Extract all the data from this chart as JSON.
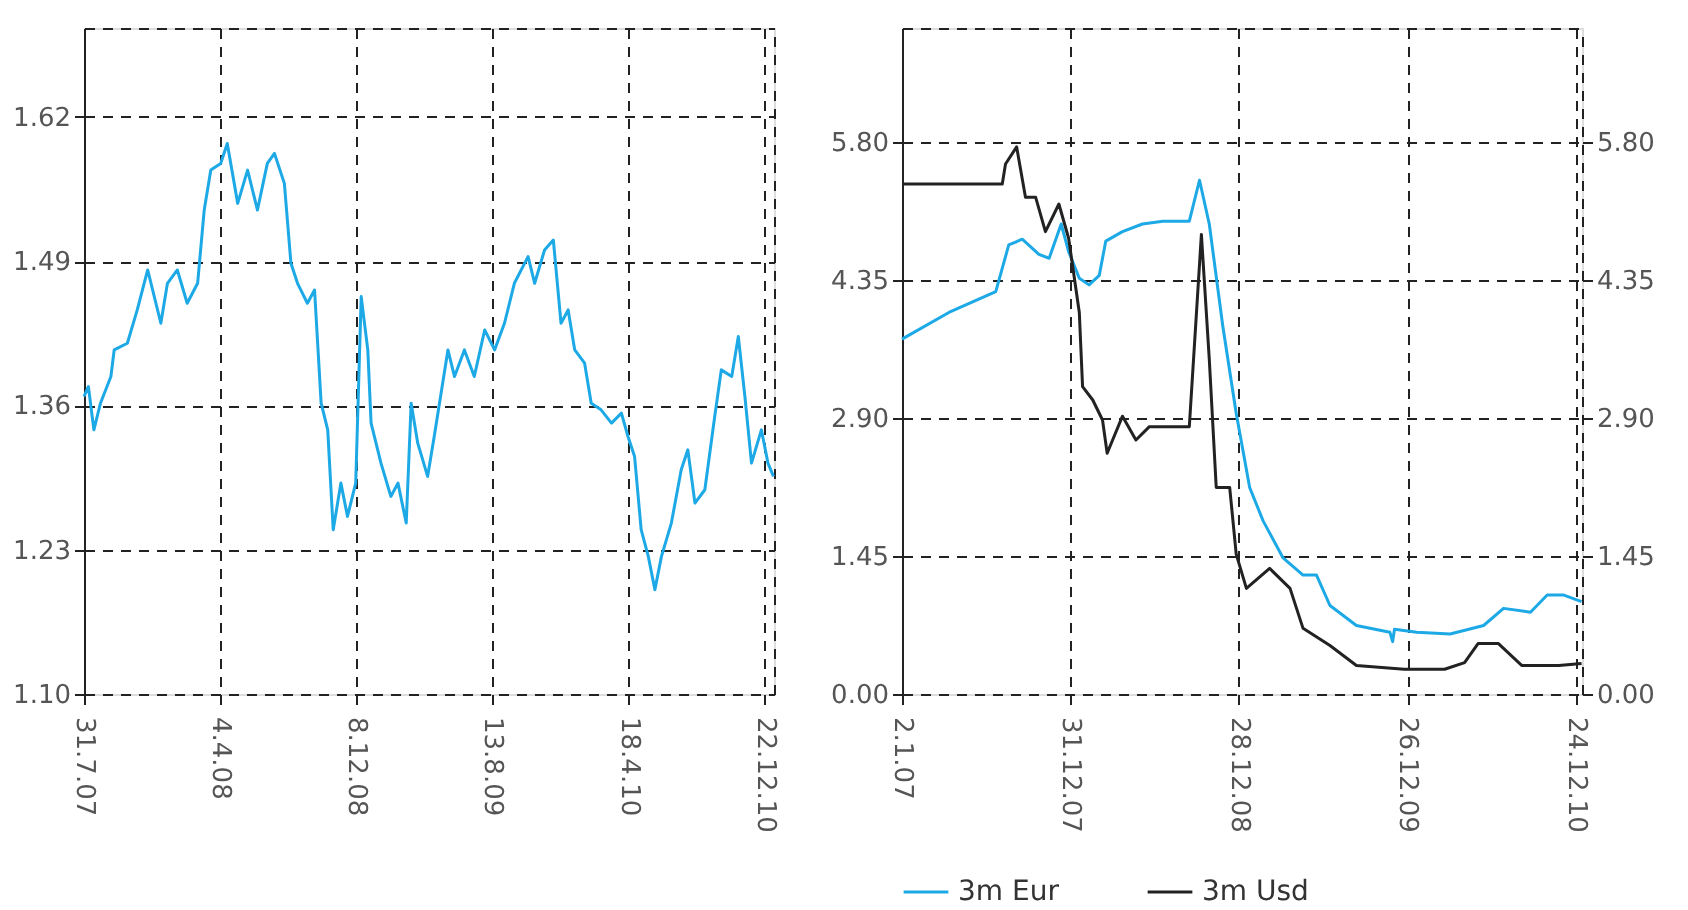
{
  "chart_data": [
    {
      "type": "line",
      "x": [
        "2007-07-31",
        "2007-08-08",
        "2007-08-18",
        "2007-08-30",
        "2007-09-18",
        "2007-09-24",
        "2007-10-18",
        "2007-11-05",
        "2007-11-24",
        "2007-12-18",
        "2007-12-30",
        "2008-01-17",
        "2008-02-04",
        "2008-02-23",
        "2008-03-06",
        "2008-03-18",
        "2008-04-05",
        "2008-04-17",
        "2008-05-06",
        "2008-05-24",
        "2008-06-11",
        "2008-06-29",
        "2008-07-12",
        "2008-07-30",
        "2008-08-11",
        "2008-08-23",
        "2008-09-10",
        "2008-09-23",
        "2008-10-05",
        "2008-10-17",
        "2008-10-27",
        "2008-11-10",
        "2008-11-22",
        "2008-12-07",
        "2008-12-17",
        "2008-12-29",
        "2009-01-04",
        "2009-01-22",
        "2009-02-09",
        "2009-02-22",
        "2009-03-09",
        "2009-03-18",
        "2009-03-30",
        "2009-04-17",
        "2009-04-29",
        "2009-05-24",
        "2009-06-05",
        "2009-06-23",
        "2009-07-11",
        "2009-07-30",
        "2009-08-17",
        "2009-09-04",
        "2009-09-22",
        "2009-10-17",
        "2009-10-29",
        "2009-11-16",
        "2009-12-02",
        "2009-12-16",
        "2009-12-29",
        "2010-01-10",
        "2010-01-28",
        "2010-02-09",
        "2010-02-27",
        "2010-03-18",
        "2010-04-05",
        "2010-04-17",
        "2010-04-29",
        "2010-05-11",
        "2010-05-24",
        "2010-06-05",
        "2010-06-17",
        "2010-07-05",
        "2010-07-23",
        "2010-08-04",
        "2010-08-17",
        "2010-09-04",
        "2010-09-22",
        "2010-10-04",
        "2010-10-23",
        "2010-11-04",
        "2010-11-16",
        "2010-11-28",
        "2010-12-16",
        "2010-12-28",
        "2011-01-07"
      ],
      "series": [
        {
          "color": "#1ca9e6",
          "values": [
            1.368,
            1.377,
            1.338,
            1.362,
            1.386,
            1.41,
            1.416,
            1.446,
            1.482,
            1.434,
            1.47,
            1.482,
            1.452,
            1.47,
            1.536,
            1.572,
            1.578,
            1.596,
            1.542,
            1.572,
            1.536,
            1.578,
            1.587,
            1.56,
            1.488,
            1.47,
            1.452,
            1.464,
            1.362,
            1.338,
            1.248,
            1.29,
            1.26,
            1.29,
            1.458,
            1.41,
            1.344,
            1.308,
            1.278,
            1.29,
            1.254,
            1.362,
            1.326,
            1.296,
            1.332,
            1.41,
            1.386,
            1.41,
            1.386,
            1.428,
            1.41,
            1.434,
            1.47,
            1.494,
            1.47,
            1.5,
            1.509,
            1.434,
            1.446,
            1.41,
            1.398,
            1.362,
            1.356,
            1.344,
            1.353,
            1.332,
            1.314,
            1.248,
            1.224,
            1.194,
            1.224,
            1.254,
            1.302,
            1.32,
            1.272,
            1.284,
            1.35,
            1.392,
            1.386,
            1.422,
            1.368,
            1.308,
            1.338,
            1.308,
            1.296
          ]
        }
      ],
      "xlim": [
        "2007-07-31",
        "2011-01-08"
      ],
      "xticks": [
        {
          "value": "2007-07-31",
          "label": "31.7.07"
        },
        {
          "value": "2008-04-04",
          "label": "4.4.08"
        },
        {
          "value": "2008-12-08",
          "label": "8.12.08"
        },
        {
          "value": "2009-08-13",
          "label": "13.8.09"
        },
        {
          "value": "2010-04-18",
          "label": "18.4.10"
        },
        {
          "value": "2010-12-22",
          "label": "22.12.10"
        }
      ],
      "ylim": [
        1.1,
        1.7
      ],
      "yticks": [
        {
          "value": 1.1,
          "label": "1.10"
        },
        1.23,
        1.36,
        1.49,
        1.62
      ],
      "grid": true,
      "legend": false,
      "line_style": "solid",
      "marker": "none"
    },
    {
      "type": "line",
      "series": [
        {
          "name": "3m Eur",
          "color": "#1ca9e6",
          "x": [
            "2007-01-02",
            "2007-04-13",
            "2007-07-23",
            "2007-08-20",
            "2007-09-18",
            "2007-10-24",
            "2007-11-15",
            "2007-12-11",
            "2007-12-27",
            "2008-01-19",
            "2008-02-09",
            "2008-03-02",
            "2008-03-16",
            "2008-04-21",
            "2008-06-03",
            "2008-07-17",
            "2008-09-12",
            "2008-10-04",
            "2008-10-25",
            "2008-11-23",
            "2008-12-22",
            "2009-01-20",
            "2009-02-18",
            "2009-04-02",
            "2009-05-15",
            "2009-06-13",
            "2009-07-12",
            "2009-09-07",
            "2009-11-18",
            "2009-11-24",
            "2009-11-28",
            "2010-01-15",
            "2010-03-28",
            "2010-06-08",
            "2010-07-21",
            "2010-09-17",
            "2010-10-23",
            "2010-11-28",
            "2011-01-05"
          ],
          "values": [
            3.73,
            4.01,
            4.23,
            4.72,
            4.78,
            4.62,
            4.58,
            4.94,
            4.65,
            4.37,
            4.3,
            4.4,
            4.76,
            4.86,
            4.94,
            4.97,
            4.97,
            5.4,
            4.94,
            3.87,
            2.95,
            2.17,
            1.82,
            1.43,
            1.25,
            1.25,
            0.93,
            0.72,
            0.65,
            0.55,
            0.68,
            0.65,
            0.63,
            0.72,
            0.9,
            0.86,
            1.04,
            1.04,
            0.97
          ]
        },
        {
          "name": "3m Usd",
          "color": "#222222",
          "x": [
            "2007-01-02",
            "2007-08-06",
            "2007-08-13",
            "2007-09-06",
            "2007-09-25",
            "2007-10-17",
            "2007-11-07",
            "2007-12-06",
            "2007-12-27",
            "2008-01-19",
            "2008-01-26",
            "2008-02-17",
            "2008-03-09",
            "2008-03-19",
            "2008-04-21",
            "2008-05-20",
            "2008-06-18",
            "2008-09-12",
            "2008-10-08",
            "2008-10-25",
            "2008-11-09",
            "2008-12-08",
            "2008-12-22",
            "2009-01-13",
            "2009-03-04",
            "2009-04-17",
            "2009-05-15",
            "2009-07-12",
            "2009-09-07",
            "2009-12-19",
            "2010-03-16",
            "2010-04-28",
            "2010-05-27",
            "2010-07-10",
            "2010-08-29",
            "2010-11-17",
            "2011-01-05"
          ],
          "values": [
            5.36,
            5.36,
            5.57,
            5.75,
            5.22,
            5.22,
            4.86,
            5.15,
            4.79,
            4.01,
            3.23,
            3.09,
            2.88,
            2.53,
            2.92,
            2.67,
            2.81,
            2.81,
            4.83,
            3.52,
            2.17,
            2.17,
            1.47,
            1.11,
            1.32,
            1.11,
            0.69,
            0.51,
            0.3,
            0.26,
            0.26,
            0.33,
            0.53,
            0.53,
            0.3,
            0.3,
            0.32
          ]
        }
      ],
      "xlim": [
        "2007-01-02",
        "2011-01-06"
      ],
      "xticks": [
        {
          "value": "2007-01-02",
          "label": "2.1.07"
        },
        {
          "value": "2007-12-31",
          "label": "31.12.07"
        },
        {
          "value": "2008-12-28",
          "label": "28.12.08"
        },
        {
          "value": "2009-12-26",
          "label": "26.12.09"
        },
        {
          "value": "2010-12-24",
          "label": "24.12.10"
        }
      ],
      "ylim": [
        0,
        7.0
      ],
      "yticks": [
        {
          "value": 0,
          "label": "0.00"
        },
        1.45,
        {
          "value": 2.9,
          "label": "2.90"
        },
        4.35,
        {
          "value": 5.8,
          "label": "5.80"
        }
      ],
      "y2lim": [
        0,
        7.0
      ],
      "y2ticks": [
        {
          "value": 0,
          "label": "0.00"
        },
        1.45,
        {
          "value": 2.9,
          "label": "2.90"
        },
        4.35,
        {
          "value": 5.8,
          "label": "5.80"
        }
      ],
      "grid": true,
      "legend": "bottom",
      "line_style": "solid",
      "marker": "none"
    }
  ]
}
